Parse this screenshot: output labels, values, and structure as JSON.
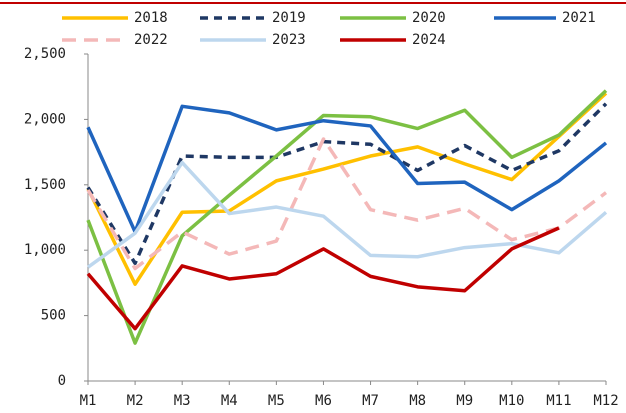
{
  "chart_data": {
    "type": "line",
    "categories": [
      "M1",
      "M2",
      "M3",
      "M4",
      "M5",
      "M6",
      "M7",
      "M8",
      "M9",
      "M10",
      "M11",
      "M12"
    ],
    "series": [
      {
        "name": "2018",
        "color": "#ffc000",
        "dashed": false,
        "values": [
          1470,
          740,
          1290,
          1300,
          1530,
          1620,
          1720,
          1790,
          1660,
          1540,
          1870,
          2200
        ]
      },
      {
        "name": "2019",
        "color": "#1f3864",
        "dashed": true,
        "values": [
          1480,
          900,
          1720,
          1710,
          1710,
          1830,
          1810,
          1610,
          1800,
          1610,
          1760,
          2120
        ]
      },
      {
        "name": "2020",
        "color": "#7cc043",
        "dashed": false,
        "values": [
          1230,
          290,
          1110,
          1420,
          1720,
          2030,
          2020,
          1930,
          2070,
          1710,
          1880,
          2220
        ]
      },
      {
        "name": "2021",
        "color": "#1f64be",
        "dashed": false,
        "values": [
          1940,
          1140,
          2100,
          2050,
          1920,
          1990,
          1950,
          1510,
          1520,
          1310,
          1530,
          1820
        ]
      },
      {
        "name": "2022",
        "color": "#f4b8b8",
        "dashed": true,
        "values": [
          1460,
          860,
          1140,
          970,
          1070,
          1850,
          1310,
          1230,
          1320,
          1080,
          1170,
          1440
        ]
      },
      {
        "name": "2023",
        "color": "#bdd7ee",
        "dashed": false,
        "values": [
          870,
          1130,
          1670,
          1280,
          1330,
          1260,
          960,
          950,
          1020,
          1050,
          980,
          1290
        ]
      },
      {
        "name": "2024",
        "color": "#c00000",
        "dashed": false,
        "values": [
          820,
          400,
          880,
          780,
          820,
          1010,
          800,
          720,
          690,
          1010,
          1170,
          null
        ]
      }
    ],
    "ylim": [
      0,
      2500
    ],
    "yticks": [
      0,
      500,
      {
        "value": 1000,
        "label": "1,000"
      },
      {
        "value": 1500,
        "label": "1,500"
      },
      {
        "value": 2000,
        "label": "2,000"
      },
      {
        "value": 2500,
        "label": "2,500"
      }
    ],
    "grid": false
  }
}
